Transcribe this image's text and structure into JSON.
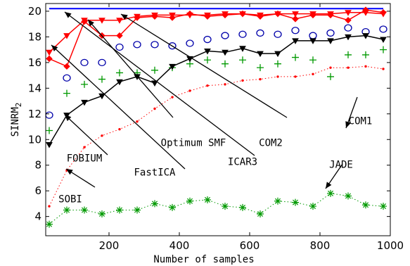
{
  "chart_data": {
    "type": "line",
    "xlabel": "Number of samples",
    "ylabel": "SINRM",
    "ylabel_sub": "2",
    "xlim": [
      20,
      1000
    ],
    "ylim": [
      2.5,
      20.6
    ],
    "xticks": [
      200,
      400,
      600,
      800,
      1000
    ],
    "yticks": [
      4,
      6,
      8,
      10,
      12,
      14,
      16,
      18,
      20
    ],
    "grid": false,
    "x": [
      30,
      80,
      130,
      180,
      230,
      280,
      330,
      380,
      430,
      480,
      530,
      580,
      630,
      680,
      730,
      780,
      830,
      880,
      930,
      980
    ],
    "series": [
      {
        "name": "Optimum SMF",
        "color": "#0000ff",
        "style": "line",
        "values": [
          20.2,
          20.2,
          20.2,
          20.2,
          20.2,
          20.2,
          20.2,
          20.2,
          20.2,
          20.2,
          20.2,
          20.2,
          20.2,
          20.2,
          20.2,
          20.2,
          20.2,
          20.2,
          20.2,
          20.2
        ]
      },
      {
        "name": "COM2",
        "color": "#ff0000",
        "style": "line-triangle",
        "values": [
          16.8,
          18.1,
          19.3,
          19.3,
          19.3,
          19.6,
          19.7,
          19.7,
          19.7,
          19.7,
          19.8,
          19.8,
          19.7,
          19.8,
          19.8,
          19.8,
          19.8,
          19.9,
          19.9,
          19.8
        ]
      },
      {
        "name": "ICAR3",
        "color": "#ff0000",
        "style": "line-diamond",
        "values": [
          16.3,
          15.7,
          19.2,
          18.1,
          18.1,
          19.5,
          19.6,
          19.5,
          19.8,
          19.6,
          19.7,
          19.8,
          19.6,
          19.8,
          19.4,
          19.7,
          19.7,
          19.3,
          20.1,
          19.9
        ]
      },
      {
        "name": "COM1",
        "color": "#0000aa",
        "style": "circle",
        "values": [
          11.9,
          14.8,
          16.0,
          16.0,
          17.2,
          17.4,
          17.4,
          17.3,
          17.5,
          17.8,
          18.1,
          18.2,
          18.3,
          18.2,
          18.5,
          18.1,
          18.3,
          18.7,
          18.4,
          18.6
        ]
      },
      {
        "name": "FastICA",
        "color": "#009900",
        "style": "plus",
        "values": [
          10.7,
          13.6,
          14.3,
          14.7,
          15.2,
          15.2,
          15.4,
          15.6,
          15.9,
          16.2,
          15.9,
          16.2,
          15.6,
          15.9,
          16.4,
          16.2,
          14.9,
          16.6,
          16.6,
          17.0
        ]
      },
      {
        "name": "FOBIUM",
        "color": "#000000",
        "style": "line-triangle",
        "values": [
          9.6,
          11.9,
          12.9,
          13.4,
          14.5,
          14.9,
          14.4,
          15.7,
          16.3,
          16.9,
          16.8,
          17.1,
          16.7,
          16.7,
          17.7,
          17.7,
          17.7,
          18.0,
          18.1,
          17.8
        ]
      },
      {
        "name": "SOBI",
        "color": "#ff0000",
        "style": "dotted-dot",
        "values": [
          4.8,
          7.6,
          9.4,
          10.3,
          10.8,
          11.4,
          12.4,
          13.3,
          13.8,
          14.2,
          14.3,
          14.6,
          14.7,
          14.9,
          14.9,
          15.1,
          15.6,
          15.6,
          15.7,
          15.5
        ]
      },
      {
        "name": "JADE",
        "color": "#009900",
        "style": "dotted-star",
        "values": [
          3.4,
          4.5,
          4.5,
          4.2,
          4.5,
          4.5,
          5.0,
          4.7,
          5.2,
          5.3,
          4.8,
          4.7,
          4.2,
          5.2,
          5.1,
          4.8,
          5.8,
          5.6,
          4.9,
          4.8
        ]
      }
    ],
    "annotations": [
      {
        "text": "Optimum SMF",
        "label_at": [
          440,
          9.5
        ]
      },
      {
        "text": "COM2",
        "label_at": [
          660,
          9.5
        ]
      },
      {
        "text": "COM1",
        "label_at": [
          915,
          11.2
        ]
      },
      {
        "text": "FOBIUM",
        "label_at": [
          130,
          8.3
        ]
      },
      {
        "text": "FastICA",
        "label_at": [
          330,
          7.2
        ]
      },
      {
        "text": "ICAR3",
        "label_at": [
          580,
          8.0
        ]
      },
      {
        "text": "JADE",
        "label_at": [
          860,
          7.8
        ]
      },
      {
        "text": "SOBI",
        "label_at": [
          90,
          5.1
        ]
      }
    ]
  }
}
